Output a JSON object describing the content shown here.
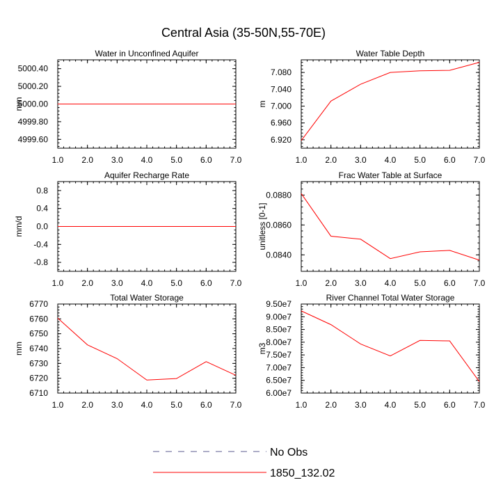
{
  "figure": {
    "title": "Central Asia (35-50N,55-70E)"
  },
  "legend": {
    "placement": "bottom-center",
    "entries": [
      {
        "label": "No Obs",
        "color": "#5b5b8f",
        "dash": true
      },
      {
        "label": "1850_132.02",
        "color": "#ff0000",
        "dash": false
      }
    ]
  },
  "chart_data": [
    {
      "type": "line",
      "title": "Water in Unconfined Aquifer",
      "ylabel": "mm",
      "xlabel": "",
      "xlim": [
        1,
        7
      ],
      "ylim": [
        4999.5,
        5000.5
      ],
      "x_ticks": [
        1,
        2,
        3,
        4,
        5,
        6,
        7
      ],
      "x_tick_labels": [
        "1.0",
        "2.0",
        "3.0",
        "4.0",
        "5.0",
        "6.0",
        "7.0"
      ],
      "y_ticks": [
        4999.6,
        4999.8,
        5000.0,
        5000.2,
        5000.4
      ],
      "y_tick_labels": [
        "4999.60",
        "4999.80",
        "5000.00",
        "5000.20",
        "5000.40"
      ],
      "y_minor_step": 0.04,
      "series": [
        {
          "name": "1850_132.02",
          "color": "#ff0000",
          "x": [
            1,
            2,
            3,
            4,
            5,
            6,
            7
          ],
          "y": [
            5000,
            5000,
            5000,
            5000,
            5000,
            5000,
            5000
          ]
        }
      ]
    },
    {
      "type": "line",
      "title": "Water Table Depth",
      "ylabel": "m",
      "xlabel": "",
      "xlim": [
        1,
        7
      ],
      "ylim": [
        6.9,
        7.11
      ],
      "x_ticks": [
        1,
        2,
        3,
        4,
        5,
        6,
        7
      ],
      "x_tick_labels": [
        "1.0",
        "2.0",
        "3.0",
        "4.0",
        "5.0",
        "6.0",
        "7.0"
      ],
      "y_ticks": [
        6.92,
        6.96,
        7.0,
        7.04,
        7.08
      ],
      "y_tick_labels": [
        "6.920",
        "6.960",
        "7.000",
        "7.040",
        "7.080"
      ],
      "y_minor_step": 0.008,
      "series": [
        {
          "name": "1850_132.02",
          "color": "#ff0000",
          "x": [
            1,
            2,
            3,
            4,
            5,
            6,
            7
          ],
          "y": [
            6.918,
            7.012,
            7.052,
            7.08,
            7.084,
            7.085,
            7.104
          ]
        }
      ]
    },
    {
      "type": "line",
      "title": "Aquifer Recharge Rate",
      "ylabel": "mm/d",
      "xlabel": "",
      "xlim": [
        1,
        7
      ],
      "ylim": [
        -1,
        1
      ],
      "x_ticks": [
        1,
        2,
        3,
        4,
        5,
        6,
        7
      ],
      "x_tick_labels": [
        "1.0",
        "2.0",
        "3.0",
        "4.0",
        "5.0",
        "6.0",
        "7.0"
      ],
      "y_ticks": [
        -0.8,
        -0.4,
        0.0,
        0.4,
        0.8
      ],
      "y_tick_labels": [
        "-0.8",
        "-0.4",
        "0.0",
        "0.4",
        "0.8"
      ],
      "y_minor_step": 0.08,
      "series": [
        {
          "name": "1850_132.02",
          "color": "#ff0000",
          "x": [
            1,
            2,
            3,
            4,
            5,
            6,
            7
          ],
          "y": [
            0,
            0,
            0,
            0,
            0,
            0,
            0
          ]
        }
      ]
    },
    {
      "type": "line",
      "title": "Frac Water Table at Surface",
      "ylabel": "unitless [0-1]",
      "xlabel": "",
      "xlim": [
        1,
        7
      ],
      "ylim": [
        0.0829,
        0.0889
      ],
      "x_ticks": [
        1,
        2,
        3,
        4,
        5,
        6,
        7
      ],
      "x_tick_labels": [
        "1.0",
        "2.0",
        "3.0",
        "4.0",
        "5.0",
        "6.0",
        "7.0"
      ],
      "y_ticks": [
        0.084,
        0.086,
        0.088
      ],
      "y_tick_labels": [
        "0.0840",
        "0.0860",
        "0.0880"
      ],
      "y_minor_step": 0.0004,
      "series": [
        {
          "name": "1850_132.02",
          "color": "#ff0000",
          "x": [
            1,
            2,
            3,
            4,
            5,
            6,
            7
          ],
          "y": [
            0.0881,
            0.08525,
            0.08505,
            0.08375,
            0.0842,
            0.0843,
            0.08365
          ]
        }
      ]
    },
    {
      "type": "line",
      "title": "Total Water Storage",
      "ylabel": "mm",
      "xlabel": "",
      "xlim": [
        1,
        7
      ],
      "ylim": [
        6710,
        6770
      ],
      "x_ticks": [
        1,
        2,
        3,
        4,
        5,
        6,
        7
      ],
      "x_tick_labels": [
        "1.0",
        "2.0",
        "3.0",
        "4.0",
        "5.0",
        "6.0",
        "7.0"
      ],
      "y_ticks": [
        6710,
        6720,
        6730,
        6740,
        6750,
        6760,
        6770
      ],
      "y_tick_labels": [
        "6710",
        "6720",
        "6730",
        "6740",
        "6750",
        "6760",
        "6770"
      ],
      "y_minor_step": 2,
      "series": [
        {
          "name": "1850_132.02",
          "color": "#ff0000",
          "x": [
            1,
            2,
            3,
            4,
            5,
            6,
            7
          ],
          "y": [
            6760.5,
            6742.5,
            6733.2,
            6718.8,
            6719.8,
            6731.2,
            6722.0
          ]
        }
      ]
    },
    {
      "type": "line",
      "title": "River Channel Total Water Storage",
      "ylabel": "m3",
      "xlabel": "",
      "xlim": [
        1,
        7
      ],
      "ylim": [
        60000000,
        95000000
      ],
      "x_ticks": [
        1,
        2,
        3,
        4,
        5,
        6,
        7
      ],
      "x_tick_labels": [
        "1.0",
        "2.0",
        "3.0",
        "4.0",
        "5.0",
        "6.0",
        "7.0"
      ],
      "y_ticks": [
        60000000,
        65000000,
        70000000,
        75000000,
        80000000,
        85000000,
        90000000,
        95000000
      ],
      "y_tick_labels": [
        "6.00e7",
        "6.50e7",
        "7.00e7",
        "7.50e7",
        "8.00e7",
        "8.50e7",
        "9.00e7",
        "9.50e7"
      ],
      "y_minor_step": 1000000,
      "series": [
        {
          "name": "1850_132.02",
          "color": "#ff0000",
          "x": [
            1,
            2,
            3,
            4,
            5,
            6,
            7
          ],
          "y": [
            92300000,
            86900000,
            79300000,
            74600000,
            80700000,
            80500000,
            64500000
          ]
        }
      ]
    }
  ]
}
